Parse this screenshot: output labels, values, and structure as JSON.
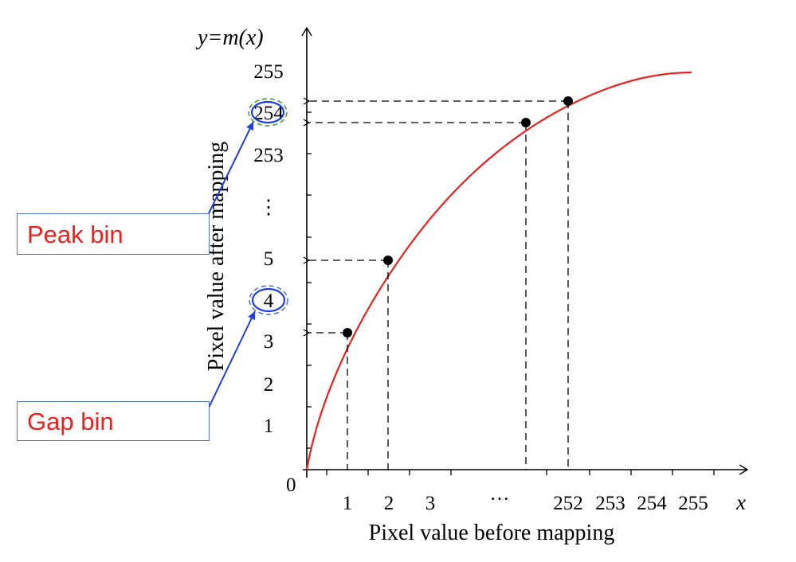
{
  "colors": {
    "curve": "#e8231f",
    "axis": "#000000",
    "arrow": "#1f3fe0",
    "peak_circle_dash": "#3a9a3a",
    "gap_circle_dash": "#4a6fd6",
    "annotation_text": "#e8231f",
    "annotation_border": "#4a6fd6"
  },
  "axes": {
    "y_axis_label": "y=m(x)",
    "x_axis_label": "x",
    "y_title": "Pixel value after mapping",
    "x_title": "Pixel value before mapping",
    "origin_label": "0",
    "y_ticks": [
      "255",
      "254",
      "253",
      "⋮",
      "5",
      "4",
      "3",
      "2",
      "1"
    ],
    "x_ticks": [
      "1",
      "2",
      "3",
      "···",
      "252",
      "253",
      "254",
      "255"
    ]
  },
  "annotations": {
    "peak_label": "Peak bin",
    "gap_label": "Gap bin",
    "peak_target": "254",
    "gap_target": "4"
  },
  "mapping_points": [
    {
      "x": "1",
      "y": "3"
    },
    {
      "x": "2",
      "y": "5"
    },
    {
      "x": "251",
      "y": "254"
    },
    {
      "x": "252",
      "y": "254"
    }
  ]
}
